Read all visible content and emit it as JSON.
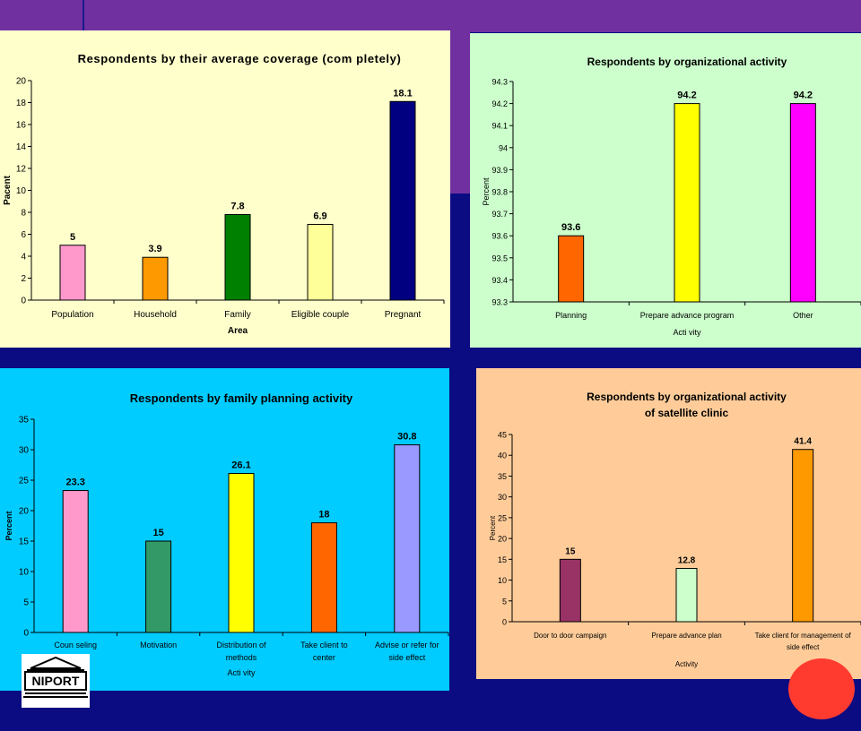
{
  "colors": {
    "background": "#0b0b82",
    "band": "#7030a0",
    "accent_dot": "#ff3b30"
  },
  "logo": {
    "text": "NIPORT",
    "icon": "building-icon"
  },
  "chart_data": [
    {
      "type": "bar",
      "title": "Respondents by their average coverage (com pletely)",
      "xlabel": "Area",
      "ylabel": "Pacent",
      "categories": [
        "Population",
        "Household",
        "Family",
        "Eligible couple",
        "Pregnant"
      ],
      "values": [
        5,
        3.9,
        7.8,
        6.9,
        18.1
      ],
      "colors": [
        "#ff99cc",
        "#ff9900",
        "#008000",
        "#ffff99",
        "#000080"
      ],
      "ylim": [
        0,
        20
      ],
      "yticks": [
        0,
        2,
        4,
        6,
        8,
        10,
        12,
        14,
        16,
        18,
        20
      ],
      "background": "#ffffcc",
      "grid": false,
      "legend": "none"
    },
    {
      "type": "bar",
      "title": "Respondents by organizational activity",
      "xlabel": "Acti vity",
      "ylabel": "Percent",
      "categories": [
        "Planning",
        "Prepare advance program",
        "Other"
      ],
      "values": [
        93.6,
        94.2,
        94.2
      ],
      "colors": [
        "#ff6600",
        "#ffff00",
        "#ff00ff"
      ],
      "ylim": [
        93.3,
        94.3
      ],
      "yticks": [
        93.3,
        93.4,
        93.5,
        93.6,
        93.7,
        93.8,
        93.9,
        94,
        94.1,
        94.2,
        94.3
      ],
      "background": "#ccffcc",
      "grid": false,
      "legend": "none"
    },
    {
      "type": "bar",
      "title": "Respondents by family planning activity",
      "xlabel": "Acti vity",
      "ylabel": "Percent",
      "categories": [
        [
          "Coun seling"
        ],
        [
          "Motivation"
        ],
        [
          "Distribution of",
          "methods"
        ],
        [
          "Take client to",
          "center"
        ],
        [
          "Advise or refer for",
          "side effect"
        ]
      ],
      "values": [
        23.3,
        15,
        26.1,
        18,
        30.8
      ],
      "colors": [
        "#ff99cc",
        "#339966",
        "#ffff00",
        "#ff6600",
        "#9999ff"
      ],
      "ylim": [
        0,
        35
      ],
      "yticks": [
        0,
        5,
        10,
        15,
        20,
        25,
        30,
        35
      ],
      "background": "#00ccff",
      "grid": false,
      "legend": "none"
    },
    {
      "type": "bar",
      "title": [
        "Respondents by organizational activity",
        "of satellite clinic"
      ],
      "xlabel": "Activity",
      "ylabel": "Percent",
      "categories": [
        [
          "Door to door campaign"
        ],
        [
          "Prepare advance plan"
        ],
        [
          "Take client for management of",
          "side effect"
        ]
      ],
      "values": [
        15,
        12.8,
        41.4
      ],
      "colors": [
        "#993366",
        "#ccffcc",
        "#ff9900"
      ],
      "ylim": [
        0,
        45
      ],
      "yticks": [
        0,
        5,
        10,
        15,
        20,
        25,
        30,
        35,
        40,
        45
      ],
      "background": "#ffcc99",
      "grid": false,
      "legend": "none"
    }
  ]
}
